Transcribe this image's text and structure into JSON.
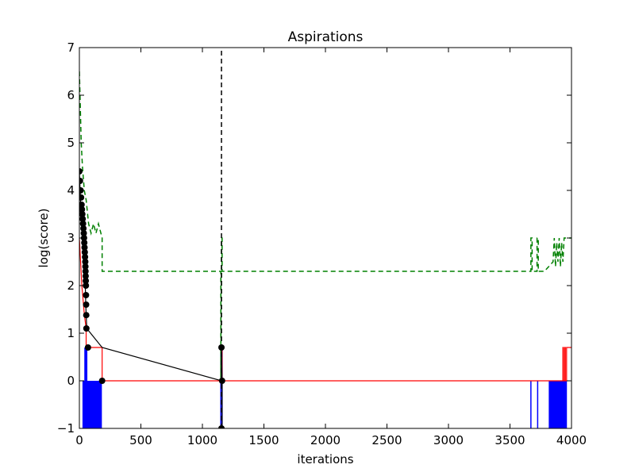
{
  "chart_data": {
    "type": "line",
    "title": "Aspirations",
    "xlabel": "iterations",
    "ylabel": "log(score)",
    "xlim": [
      0,
      4000
    ],
    "ylim": [
      -1,
      7
    ],
    "xticks": [
      0,
      500,
      1000,
      1500,
      2000,
      2500,
      3000,
      3500,
      4000
    ],
    "yticks": [
      -1,
      0,
      1,
      2,
      3,
      4,
      5,
      6,
      7
    ],
    "grid": false,
    "colors": {
      "red": "#ff0000",
      "blue": "#0000ff",
      "green": "#008000",
      "black": "#000000"
    },
    "series": [
      {
        "style": "solid",
        "color": "#ff0000",
        "x": [
          0,
          20,
          40,
          55,
          55,
          185,
          185,
          1155,
          1155,
          1160,
          1160,
          3930,
          3930,
          3935,
          3935,
          3945,
          3945,
          3950,
          3950,
          3960,
          3960,
          4000
        ],
        "y": [
          3.0,
          2.0,
          1.4,
          1.1,
          0.7,
          0.7,
          0.0,
          0.0,
          0.7,
          0.7,
          0.0,
          0.0,
          0.7,
          0.7,
          0.0,
          0.0,
          0.7,
          0.7,
          0.0,
          0.0,
          0.7,
          0.7
        ]
      },
      {
        "style": "dashed",
        "color": "#008000",
        "x": [
          0,
          5,
          15,
          25,
          40,
          55,
          75,
          95,
          115,
          135,
          155,
          175,
          185,
          185,
          1150,
          1150,
          1155,
          1155,
          1160,
          1160,
          3670,
          3670,
          3680,
          3680,
          3720,
          3720,
          3730,
          3730,
          3780,
          3780,
          3850,
          3860,
          3870,
          3880,
          3890,
          3900,
          3910,
          3920,
          3930,
          3940,
          4000
        ],
        "y": [
          6.5,
          6.0,
          5.0,
          4.5,
          4.0,
          3.8,
          3.3,
          3.1,
          3.3,
          3.1,
          3.3,
          3.1,
          3.0,
          2.3,
          2.3,
          0.0,
          2.3,
          3.0,
          3.0,
          2.3,
          2.3,
          3.0,
          3.0,
          2.3,
          2.3,
          3.0,
          3.0,
          2.3,
          2.3,
          2.3,
          2.5,
          3.0,
          2.4,
          2.9,
          2.5,
          3.0,
          2.4,
          2.9,
          2.5,
          3.0,
          3.0
        ]
      },
      {
        "style": "solid",
        "color": "#000000",
        "x": [
          0,
          3,
          6,
          9,
          12,
          15,
          18,
          21,
          24,
          27,
          30,
          33,
          36,
          39,
          42,
          45,
          48,
          50,
          52,
          55,
          60,
          185,
          1155,
          1155,
          1160,
          1160
        ],
        "y": [
          4.4,
          4.2,
          4.0,
          3.8,
          3.6,
          3.5,
          3.4,
          3.3,
          3.2,
          3.1,
          3.0,
          2.9,
          2.8,
          2.6,
          2.4,
          2.2,
          2.0,
          1.8,
          1.6,
          1.4,
          1.1,
          0.7,
          0.0,
          0.7,
          0.0,
          -1.0
        ]
      },
      {
        "style": "dashed",
        "color": "#000000",
        "x": [
          1155,
          1155
        ],
        "y": [
          -1,
          7
        ]
      }
    ],
    "markers": {
      "color": "#000000",
      "points": [
        [
          0,
          4.4
        ],
        [
          5,
          4.2
        ],
        [
          10,
          4.0
        ],
        [
          14,
          3.85
        ],
        [
          18,
          3.7
        ],
        [
          21,
          3.6
        ],
        [
          24,
          3.5
        ],
        [
          27,
          3.4
        ],
        [
          30,
          3.3
        ],
        [
          33,
          3.2
        ],
        [
          36,
          3.1
        ],
        [
          38,
          3.0
        ],
        [
          40,
          2.9
        ],
        [
          42,
          2.8
        ],
        [
          44,
          2.7
        ],
        [
          46,
          2.6
        ],
        [
          48,
          2.5
        ],
        [
          49,
          2.4
        ],
        [
          50,
          2.3
        ],
        [
          51,
          2.2
        ],
        [
          52,
          2.1
        ],
        [
          53,
          2.0
        ],
        [
          54,
          1.8
        ],
        [
          55,
          1.6
        ],
        [
          56,
          1.38
        ],
        [
          57,
          1.1
        ],
        [
          70,
          0.7
        ],
        [
          185,
          0.0
        ],
        [
          1155,
          0.7
        ],
        [
          1160,
          0.0
        ],
        [
          1155,
          -1.0
        ]
      ]
    },
    "spikes": {
      "color": "#0000ff",
      "groups": [
        {
          "from": 30,
          "to": 180,
          "step": 4,
          "top": 0.0
        },
        {
          "from": 45,
          "to": 60,
          "step": 3,
          "top": 0.7
        },
        {
          "from": 1150,
          "to": 1160,
          "step": 2,
          "top": 0.7
        },
        {
          "from": 3670,
          "to": 3670,
          "step": 1,
          "top": 0.0
        },
        {
          "from": 3725,
          "to": 3725,
          "step": 1,
          "top": 0.0
        },
        {
          "from": 3820,
          "to": 3960,
          "step": 6,
          "top": 0.0
        }
      ]
    }
  }
}
